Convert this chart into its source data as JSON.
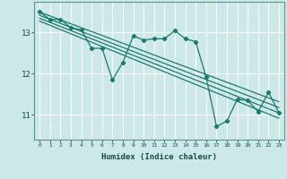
{
  "title": "",
  "xlabel": "Humidex (Indice chaleur)",
  "bg_color": "#cce8e8",
  "grid_color": "#ffffff",
  "line_color": "#1a7a6e",
  "xlim": [
    -0.5,
    23.5
  ],
  "ylim": [
    10.4,
    13.75
  ],
  "yticks": [
    11,
    12,
    13
  ],
  "xticks": [
    0,
    1,
    2,
    3,
    4,
    5,
    6,
    7,
    8,
    9,
    10,
    11,
    12,
    13,
    14,
    15,
    16,
    17,
    18,
    19,
    20,
    21,
    22,
    23
  ],
  "series": [
    [
      0,
      13.5
    ],
    [
      1,
      13.32
    ],
    [
      2,
      13.32
    ],
    [
      3,
      13.12
    ],
    [
      4,
      13.07
    ],
    [
      5,
      12.62
    ],
    [
      6,
      12.62
    ],
    [
      7,
      11.85
    ],
    [
      8,
      12.28
    ],
    [
      9,
      12.92
    ],
    [
      10,
      12.82
    ],
    [
      11,
      12.85
    ],
    [
      12,
      12.85
    ],
    [
      13,
      13.05
    ],
    [
      14,
      12.85
    ],
    [
      15,
      12.78
    ],
    [
      16,
      11.92
    ],
    [
      17,
      10.72
    ],
    [
      18,
      10.85
    ],
    [
      19,
      11.38
    ],
    [
      20,
      11.35
    ],
    [
      21,
      11.08
    ],
    [
      22,
      11.55
    ],
    [
      23,
      11.05
    ]
  ],
  "trend_lines": [
    [
      [
        0,
        13.5
      ],
      [
        23,
        11.32
      ]
    ],
    [
      [
        0,
        13.42
      ],
      [
        23,
        11.18
      ]
    ],
    [
      [
        0,
        13.35
      ],
      [
        23,
        11.05
      ]
    ],
    [
      [
        0,
        13.28
      ],
      [
        23,
        10.92
      ]
    ]
  ]
}
